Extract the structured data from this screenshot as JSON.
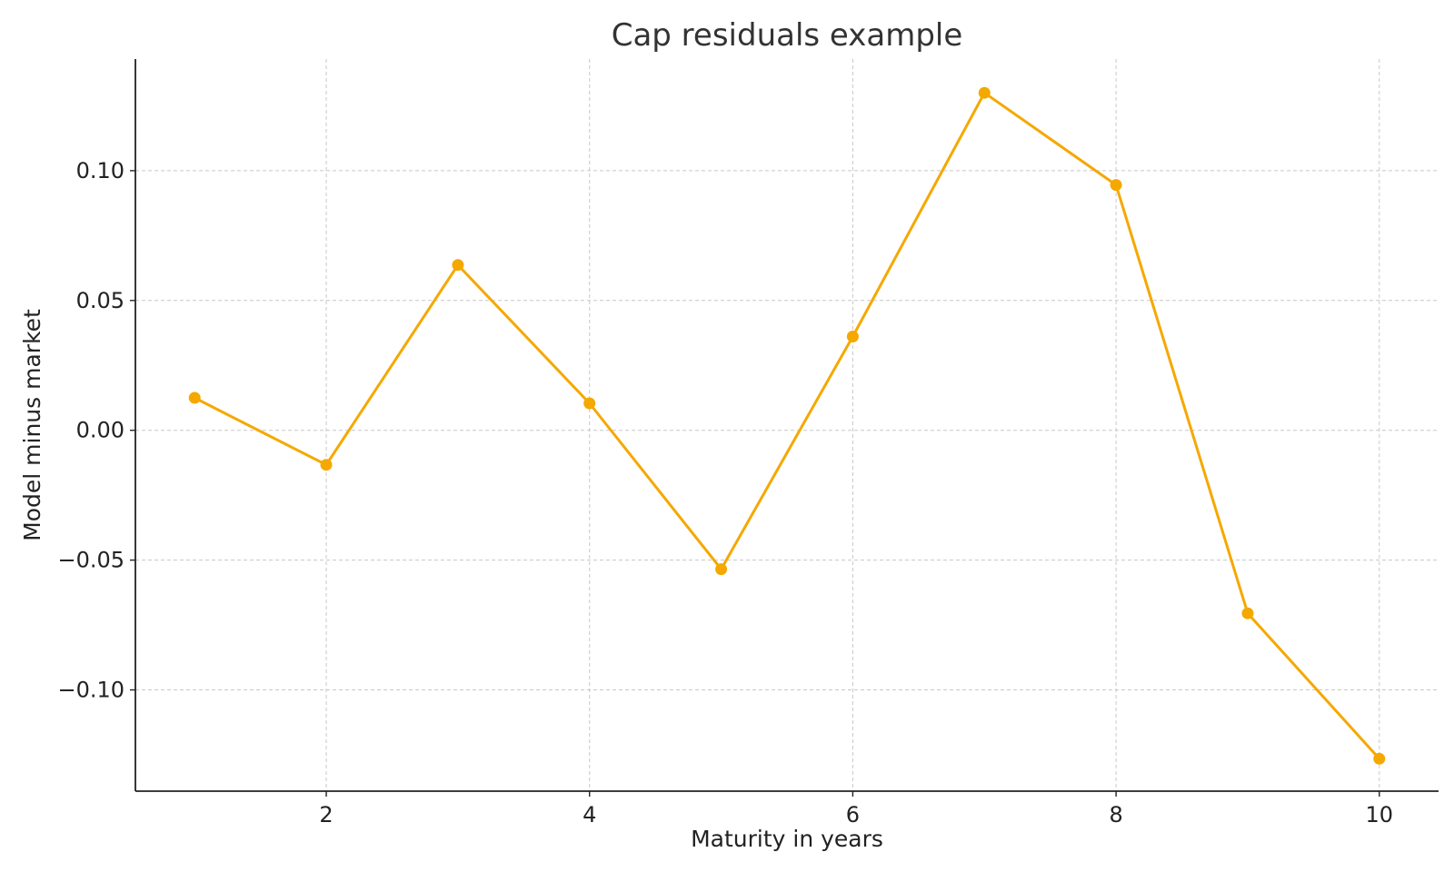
{
  "colors": {
    "series": "#f5a800",
    "grid": "#c8c8c8",
    "axis": "#222222",
    "text": "#222222",
    "title": "#333333",
    "background": "#ffffff"
  },
  "chart_data": {
    "type": "line",
    "title": "Cap residuals example",
    "xlabel": "Maturity in years",
    "ylabel": "Model minus market",
    "xlim": [
      0.55,
      10.45
    ],
    "ylim": [
      -0.139,
      0.143
    ],
    "grid": true,
    "legend": "none",
    "x_ticks": [
      2,
      4,
      6,
      8,
      10
    ],
    "x_tick_labels": [
      "2",
      "4",
      "6",
      "8",
      "10"
    ],
    "y_ticks": [
      0.1,
      0.05,
      0.0,
      -0.05,
      -0.1
    ],
    "y_tick_labels": [
      "0.10",
      "0.05",
      "0.00",
      "−0.05",
      "−0.10"
    ],
    "series": [
      {
        "x": [
          1,
          2,
          3,
          4,
          5,
          6,
          7,
          8,
          9,
          10
        ],
        "values": [
          0.0125,
          -0.0133,
          0.0637,
          0.0104,
          -0.0535,
          0.0361,
          0.13,
          0.0945,
          -0.0705,
          -0.1265
        ],
        "color": "#f5a800",
        "marker": "circle"
      }
    ]
  }
}
